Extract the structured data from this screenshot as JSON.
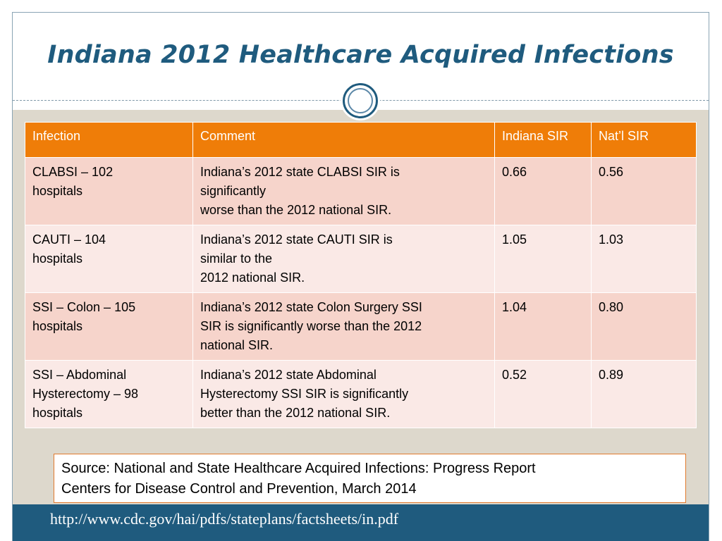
{
  "title": "Indiana 2012 Healthcare Acquired Infections",
  "table": {
    "headers": [
      "Infection",
      "Comment",
      "Indiana SIR",
      "Nat’l SIR"
    ],
    "rows": [
      {
        "infection": [
          "CLABSI – 102",
          "hospitals"
        ],
        "comment": [
          "Indiana’s 2012 state CLABSI SIR is",
          "significantly",
          "worse than the 2012 national SIR."
        ],
        "indiana_sir": "0.66",
        "natl_sir": "0.56"
      },
      {
        "infection": [
          "CAUTI – 104",
          "hospitals"
        ],
        "comment": [
          "Indiana’s 2012 state CAUTI SIR is",
          "similar to the",
          "2012 national SIR."
        ],
        "indiana_sir": "1.05",
        "natl_sir": "1.03"
      },
      {
        "infection": [
          "SSI – Colon – 105",
          "hospitals"
        ],
        "comment": [
          "Indiana’s 2012 state Colon Surgery SSI",
          "SIR is significantly worse than the 2012",
          "national SIR."
        ],
        "indiana_sir": "1.04",
        "natl_sir": "0.80"
      },
      {
        "infection": [
          "SSI – Abdominal",
          "Hysterectomy – 98",
          "hospitals"
        ],
        "comment": [
          "Indiana’s 2012 state Abdominal",
          "Hysterectomy SSI SIR is significantly",
          "better than the 2012 national SIR."
        ],
        "indiana_sir": "0.52",
        "natl_sir": "0.89"
      }
    ]
  },
  "source": {
    "line1": "Source: National and State Healthcare Acquired Infections:  Progress Report",
    "line2": "Centers for Disease Control and Prevention, March 2014"
  },
  "footer": {
    "url": "http://www.cdc.gov/hai/pdfs/stateplans/factsheets/in.pdf"
  },
  "colors": {
    "title": "#1f5b7e",
    "header_fill": "#ef7d08",
    "row_odd": "#f6d4cb",
    "row_even": "#fae9e6",
    "footer_bar": "#1f5b7e",
    "content_bg": "#ddd8cc"
  }
}
